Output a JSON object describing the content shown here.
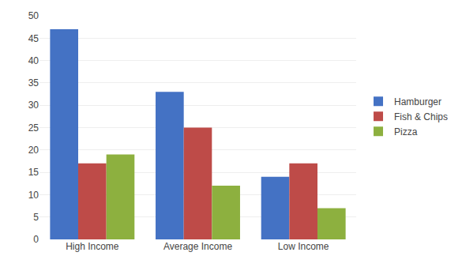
{
  "chart_data": {
    "type": "bar",
    "categories": [
      "High Income",
      "Average Income",
      "Low Income"
    ],
    "series": [
      {
        "name": "Hamburger",
        "values": [
          47,
          33,
          14
        ],
        "color": "#4472C4"
      },
      {
        "name": "Fish & Chips",
        "values": [
          17,
          25,
          17
        ],
        "color": "#BE4B48"
      },
      {
        "name": "Pizza",
        "values": [
          19,
          12,
          7
        ],
        "color": "#8DB03F"
      }
    ],
    "ylim": [
      0,
      50
    ],
    "yticks": [
      0,
      5,
      10,
      15,
      20,
      25,
      30,
      35,
      40,
      45,
      50
    ],
    "grid": true,
    "legend": "right"
  }
}
